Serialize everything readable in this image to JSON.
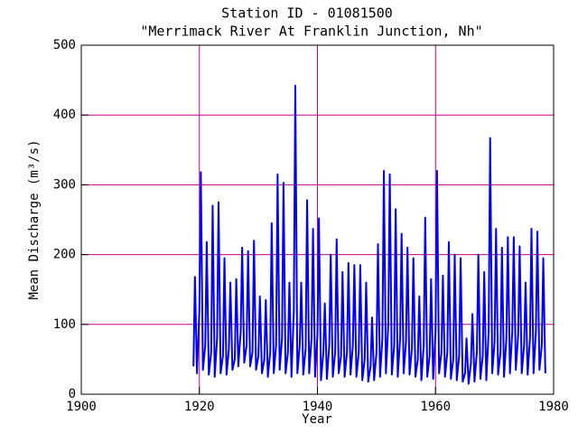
{
  "chart_data": {
    "type": "line",
    "title": "Station ID - 01081500",
    "subtitle": "\"Merrimack River At Franklin Junction, Nh\"",
    "x_label": "Year",
    "y_label": "Mean Discharge (m³/s)",
    "xlim": [
      1900,
      1980
    ],
    "xticks": [
      1900,
      1920,
      1940,
      1960,
      1980
    ],
    "ylim": [
      0,
      500
    ],
    "yticks": [
      0,
      100,
      200,
      300,
      400,
      500
    ],
    "grid": true,
    "grid_color": "#c8008c",
    "series": [
      {
        "name": "Mean Discharge",
        "color": "#0000ff",
        "x": [
          1919,
          1919.25,
          1919.6,
          1920,
          1920.25,
          1920.6,
          1921,
          1921.25,
          1921.6,
          1922,
          1922.25,
          1922.6,
          1923,
          1923.25,
          1923.6,
          1924,
          1924.25,
          1924.6,
          1925,
          1925.25,
          1925.6,
          1926,
          1926.25,
          1926.6,
          1927,
          1927.25,
          1927.6,
          1928,
          1928.25,
          1928.6,
          1929,
          1929.25,
          1929.6,
          1930,
          1930.25,
          1930.6,
          1931,
          1931.25,
          1931.6,
          1932,
          1932.25,
          1932.6,
          1933,
          1933.25,
          1933.6,
          1934,
          1934.25,
          1934.6,
          1935,
          1935.25,
          1935.6,
          1936,
          1936.25,
          1936.6,
          1937,
          1937.25,
          1937.6,
          1938,
          1938.25,
          1938.6,
          1939,
          1939.25,
          1939.6,
          1940,
          1940.25,
          1940.6,
          1941,
          1941.25,
          1941.6,
          1942,
          1942.25,
          1942.6,
          1943,
          1943.25,
          1943.6,
          1944,
          1944.25,
          1944.6,
          1945,
          1945.25,
          1945.6,
          1946,
          1946.25,
          1946.6,
          1947,
          1947.25,
          1947.6,
          1948,
          1948.25,
          1948.6,
          1949,
          1949.25,
          1949.6,
          1950,
          1950.25,
          1950.6,
          1951,
          1951.25,
          1951.6,
          1952,
          1952.25,
          1952.6,
          1953,
          1953.25,
          1953.6,
          1954,
          1954.25,
          1954.6,
          1955,
          1955.25,
          1955.6,
          1956,
          1956.25,
          1956.6,
          1957,
          1957.25,
          1957.6,
          1958,
          1958.25,
          1958.6,
          1959,
          1959.25,
          1959.6,
          1960,
          1960.25,
          1960.6,
          1961,
          1961.25,
          1961.6,
          1962,
          1962.25,
          1962.6,
          1963,
          1963.25,
          1963.6,
          1964,
          1964.25,
          1964.6,
          1965,
          1965.25,
          1965.6,
          1966,
          1966.25,
          1966.6,
          1967,
          1967.25,
          1967.6,
          1968,
          1968.25,
          1968.6,
          1969,
          1969.25,
          1969.6,
          1970,
          1970.25,
          1970.6,
          1971,
          1971.25,
          1971.6,
          1972,
          1972.25,
          1972.6,
          1973,
          1973.25,
          1973.6,
          1974,
          1974.25,
          1974.6,
          1975,
          1975.25,
          1975.6,
          1976,
          1976.25,
          1976.6,
          1977,
          1977.25,
          1977.6,
          1978,
          1978.25,
          1978.6
        ],
        "values": [
          40,
          168,
          30,
          120,
          318,
          35,
          70,
          218,
          28,
          60,
          270,
          25,
          80,
          275,
          30,
          55,
          195,
          28,
          65,
          160,
          35,
          50,
          165,
          40,
          90,
          210,
          45,
          70,
          205,
          40,
          60,
          220,
          35,
          55,
          140,
          30,
          50,
          135,
          25,
          60,
          245,
          30,
          70,
          315,
          35,
          80,
          303,
          30,
          60,
          160,
          25,
          120,
          442,
          30,
          70,
          160,
          28,
          65,
          278,
          30,
          80,
          237,
          25,
          85,
          252,
          20,
          60,
          130,
          22,
          70,
          200,
          25,
          60,
          222,
          30,
          55,
          175,
          25,
          60,
          188,
          28,
          70,
          185,
          25,
          60,
          185,
          20,
          50,
          160,
          18,
          40,
          110,
          20,
          60,
          215,
          25,
          80,
          320,
          30,
          100,
          315,
          28,
          70,
          265,
          25,
          80,
          230,
          30,
          75,
          210,
          28,
          65,
          195,
          25,
          50,
          140,
          20,
          70,
          253,
          25,
          55,
          165,
          22,
          90,
          320,
          30,
          60,
          170,
          25,
          60,
          218,
          22,
          50,
          200,
          20,
          55,
          195,
          18,
          30,
          80,
          15,
          45,
          115,
          18,
          60,
          200,
          22,
          55,
          175,
          20,
          90,
          367,
          30,
          75,
          237,
          28,
          60,
          210,
          25,
          80,
          225,
          30,
          90,
          225,
          35,
          85,
          212,
          30,
          70,
          160,
          28,
          80,
          237,
          30,
          90,
          233,
          35,
          70,
          195,
          30
        ]
      }
    ]
  }
}
